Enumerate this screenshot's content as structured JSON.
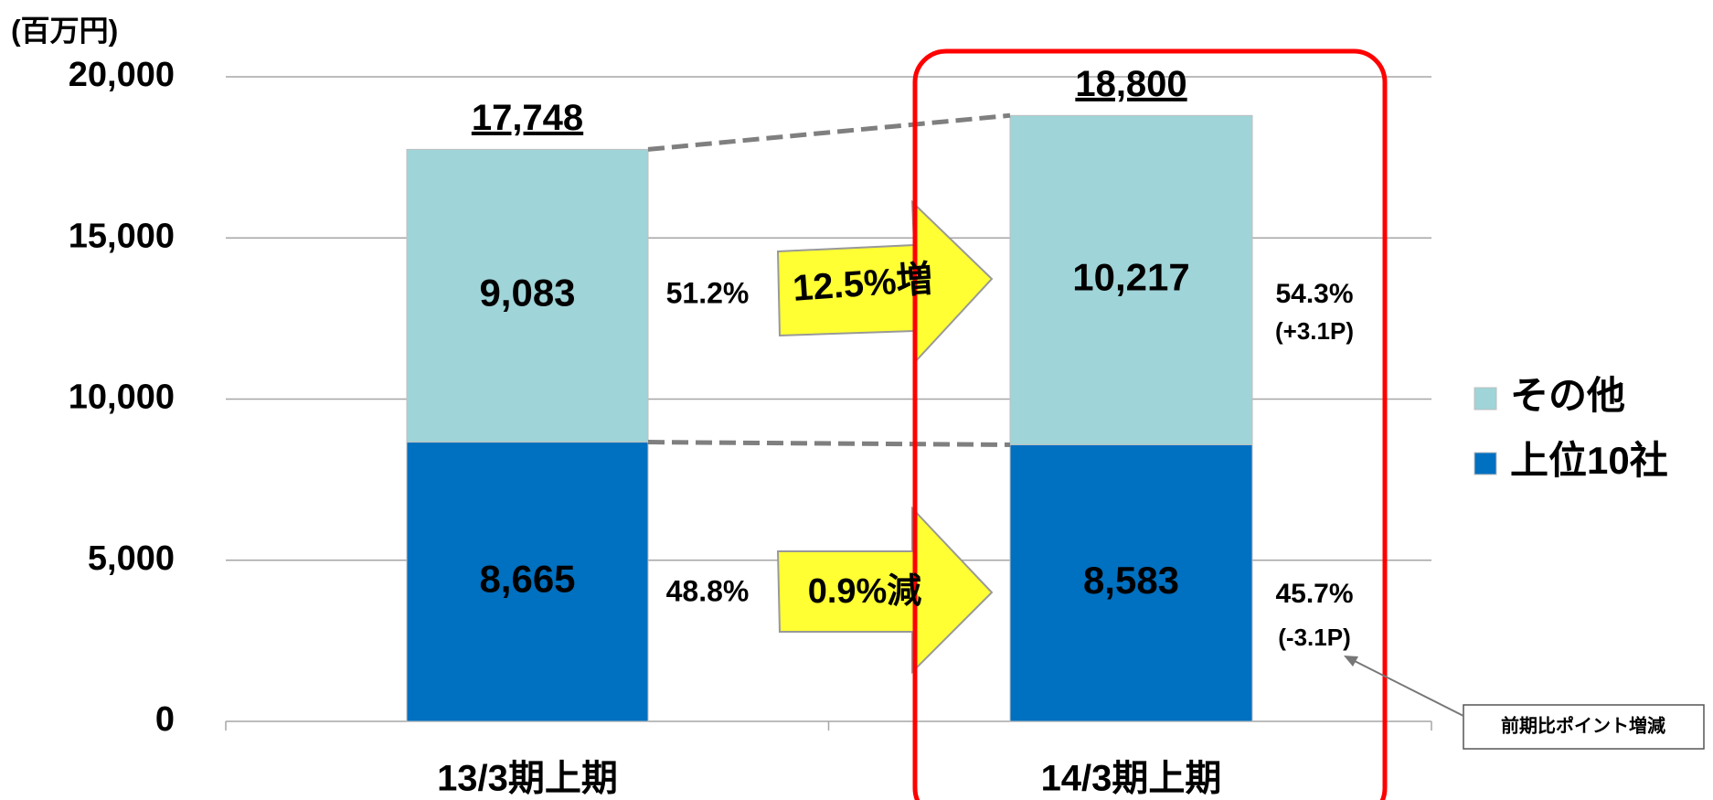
{
  "chart_data": {
    "type": "stacked_bar",
    "y_unit_label": "(百万円)",
    "categories": [
      "13/3期上期",
      "14/3期上期"
    ],
    "series": [
      {
        "name": "上位10社",
        "color": "#0070c0",
        "values": [
          8665,
          8583
        ],
        "value_labels": [
          "8,665",
          "8,583"
        ]
      },
      {
        "name": "その他",
        "color": "#9fd4d8",
        "values": [
          9083,
          10217
        ],
        "value_labels": [
          "9,083",
          "10,217"
        ]
      }
    ],
    "totals": [
      17748,
      18800
    ],
    "total_labels": [
      "17,748",
      "18,800"
    ],
    "ylim": [
      0,
      20000
    ],
    "yticks": [
      0,
      {
        "value": 5000,
        "label": "5,000"
      },
      {
        "value": 10000,
        "label": "10,000"
      },
      {
        "value": 15000,
        "label": "15,000"
      },
      {
        "value": 20000,
        "label": "20,000"
      }
    ],
    "grid": true,
    "legend": "right",
    "annotations": [
      {
        "text": "51.2%"
      },
      {
        "text": "48.8%"
      },
      {
        "text": "54.3%"
      },
      {
        "text": "(+3.1P)"
      },
      {
        "text": "45.7%"
      },
      {
        "text": "(-3.1P)"
      },
      {
        "text": "12.5%増"
      },
      {
        "text": "0.9%減"
      },
      {
        "text": "前期比ポイント増減"
      }
    ]
  }
}
